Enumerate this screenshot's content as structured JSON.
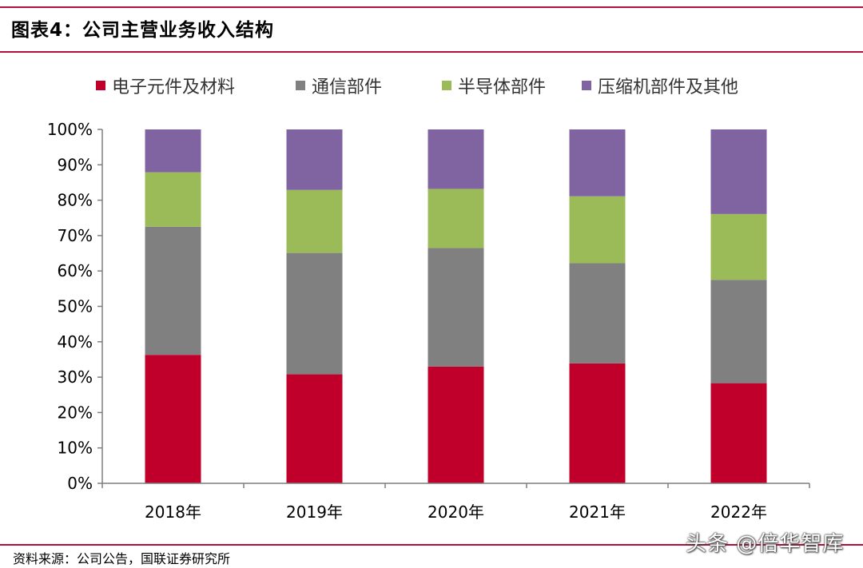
{
  "header": {
    "title": "图表4：公司主营业务收入结构"
  },
  "footer": {
    "source": "资料来源：公司公告，国联证券研究所",
    "watermark": "头条 @倍华智库"
  },
  "colors": {
    "series": [
      "#c0002a",
      "#808080",
      "#9bbb59",
      "#8064a2"
    ],
    "axis": "#7f7f7f",
    "rule": "#b0103a"
  },
  "chart_data": {
    "type": "bar",
    "stacked": true,
    "categories": [
      "2018年",
      "2019年",
      "2020年",
      "2021年",
      "2022年"
    ],
    "series": [
      {
        "name": "电子元件及材料",
        "values": [
          36.3,
          30.8,
          33.0,
          33.9,
          28.3
        ]
      },
      {
        "name": "通信部件",
        "values": [
          36.2,
          34.3,
          33.5,
          28.3,
          29.2
        ]
      },
      {
        "name": "半导体部件",
        "values": [
          15.4,
          17.8,
          16.7,
          18.9,
          18.6
        ]
      },
      {
        "name": "压缩机部件及其他",
        "values": [
          12.1,
          17.1,
          16.8,
          18.9,
          23.9
        ]
      }
    ],
    "ylim": [
      0,
      100
    ],
    "yticks": [
      "0%",
      "10%",
      "20%",
      "30%",
      "40%",
      "50%",
      "60%",
      "70%",
      "80%",
      "90%",
      "100%"
    ],
    "legend_position": "top",
    "grid": false
  }
}
